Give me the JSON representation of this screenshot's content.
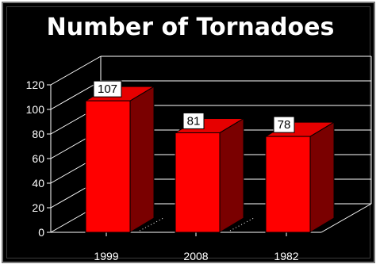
{
  "chart_data": {
    "type": "bar",
    "title": "Number of Tornadoes",
    "categories": [
      "1999",
      "2008",
      "1982"
    ],
    "values": [
      107,
      81,
      78
    ],
    "ylim": [
      0,
      120
    ],
    "yticks": [
      0,
      20,
      40,
      60,
      80,
      100,
      120
    ],
    "xlabel": "",
    "ylabel": "",
    "grid": true,
    "data_labels": true,
    "style": "3d",
    "colors": {
      "background": "#000000",
      "bar_front": "#ff0000",
      "bar_top": "#e60000",
      "bar_side": "#7a0000",
      "grid": "#ffffff",
      "text": "#ffffff",
      "label_box": "#ffffff"
    }
  }
}
